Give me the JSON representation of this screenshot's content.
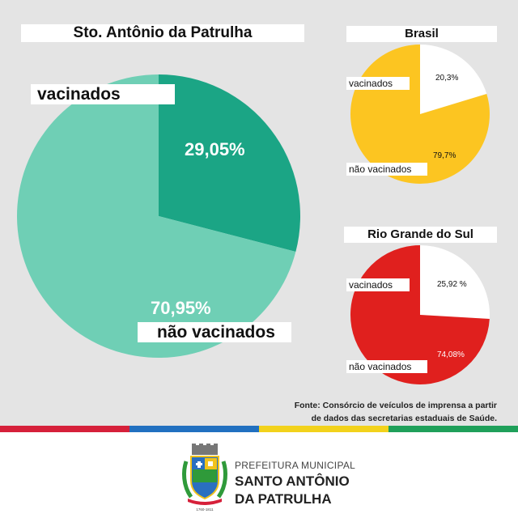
{
  "chart_data": [
    {
      "type": "pie",
      "title": "Sto. Antônio da Patrulha",
      "slices": [
        {
          "label": "vacinados",
          "value": 29.05,
          "value_label": "29,05%",
          "color": "#1ba585"
        },
        {
          "label": "não vacinados",
          "value": 70.95,
          "value_label": "70,95%",
          "color": "#6fcfb5"
        }
      ]
    },
    {
      "type": "pie",
      "title": "Brasil",
      "slices": [
        {
          "label": "vacinados",
          "value": 20.3,
          "value_label": "20,3%",
          "color": "#ffffff"
        },
        {
          "label": "não vacinados",
          "value": 79.7,
          "value_label": "79,7%",
          "color": "#fcc521"
        }
      ]
    },
    {
      "type": "pie",
      "title": "Rio Grande do Sul",
      "slices": [
        {
          "label": "vacinados",
          "value": 25.92,
          "value_label": "25,92 %",
          "color": "#ffffff"
        },
        {
          "label": "não vacinados",
          "value": 74.08,
          "value_label": "74,08%",
          "color": "#e0201e"
        }
      ]
    }
  ],
  "source": {
    "line1": "Fonte: Consórcio de veículos de imprensa a partir",
    "line2": "de dados das secretarias estaduais de Saúde."
  },
  "footer": {
    "line1": "PREFEITURA MUNICIPAL",
    "line2": "SANTO ANTÔNIO",
    "line3": "DA PATRULHA",
    "crest_years": "1760-1811"
  },
  "stripe_colors": [
    "#d6203a",
    "#2170c0",
    "#f2d21c",
    "#1fa05a"
  ]
}
